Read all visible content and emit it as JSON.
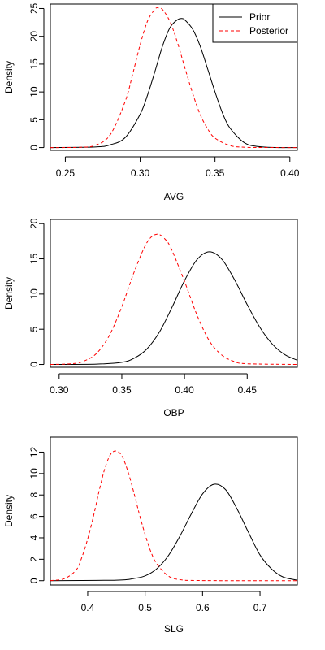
{
  "chart_data": [
    {
      "type": "line",
      "xlabel": "AVG",
      "ylabel": "Density",
      "xlim": [
        0.24,
        0.405
      ],
      "ylim": [
        -0.5,
        25.8
      ],
      "xticks": [
        0.25,
        0.3,
        0.35,
        0.4
      ],
      "xtick_labels": [
        "0.25",
        "0.30",
        "0.35",
        "0.40"
      ],
      "yticks": [
        0,
        5,
        10,
        15,
        20,
        25
      ],
      "ytick_labels": [
        "0",
        "5",
        "10",
        "15",
        "20",
        "25"
      ],
      "grid": false,
      "legend": {
        "placement": "top-right",
        "entries": [
          "Prior",
          "Posterior"
        ]
      },
      "series": [
        {
          "name": "Prior",
          "color": "#000000",
          "dash": "solid",
          "x": [
            0.24,
            0.27,
            0.28,
            0.29,
            0.3,
            0.305,
            0.31,
            0.315,
            0.32,
            0.325,
            0.328,
            0.33,
            0.335,
            0.34,
            0.345,
            0.35,
            0.355,
            0.36,
            0.37,
            0.38,
            0.39,
            0.405
          ],
          "y": [
            0,
            0.1,
            0.5,
            1.8,
            6.0,
            9.5,
            13.8,
            18.3,
            21.6,
            23.0,
            23.2,
            22.9,
            21.3,
            18.3,
            14.2,
            10.0,
            6.2,
            3.5,
            0.8,
            0.15,
            0.02,
            0
          ]
        },
        {
          "name": "Posterior",
          "color": "#ff0000",
          "dash": "dashed",
          "x": [
            0.24,
            0.26,
            0.27,
            0.28,
            0.29,
            0.295,
            0.3,
            0.305,
            0.31,
            0.312,
            0.315,
            0.32,
            0.325,
            0.33,
            0.335,
            0.34,
            0.345,
            0.35,
            0.36,
            0.37,
            0.38,
            0.405
          ],
          "y": [
            0,
            0.05,
            0.4,
            2.3,
            8.3,
            13.2,
            18.5,
            22.8,
            24.9,
            25.1,
            24.8,
            22.6,
            18.8,
            14.2,
            9.8,
            6.0,
            3.4,
            1.7,
            0.35,
            0.05,
            0.01,
            0
          ]
        }
      ]
    },
    {
      "type": "line",
      "xlabel": "OBP",
      "ylabel": "Density",
      "xlim": [
        0.293,
        0.49
      ],
      "ylim": [
        -0.4,
        20.6
      ],
      "xticks": [
        0.3,
        0.35,
        0.4,
        0.45
      ],
      "xtick_labels": [
        "0.30",
        "0.35",
        "0.40",
        "0.45"
      ],
      "yticks": [
        0,
        5,
        10,
        15,
        20
      ],
      "ytick_labels": [
        "0",
        "5",
        "10",
        "15",
        "20"
      ],
      "grid": false,
      "series": [
        {
          "name": "Prior",
          "color": "#000000",
          "dash": "solid",
          "x": [
            0.293,
            0.33,
            0.35,
            0.36,
            0.37,
            0.38,
            0.39,
            0.4,
            0.41,
            0.42,
            0.43,
            0.44,
            0.45,
            0.46,
            0.47,
            0.48,
            0.49
          ],
          "y": [
            0,
            0.05,
            0.3,
            0.9,
            2.2,
            4.6,
            8.1,
            11.9,
            14.9,
            16.0,
            14.9,
            12.0,
            8.5,
            5.3,
            2.9,
            1.4,
            0.6
          ]
        },
        {
          "name": "Posterior",
          "color": "#ff0000",
          "dash": "dashed",
          "x": [
            0.293,
            0.31,
            0.32,
            0.33,
            0.34,
            0.35,
            0.36,
            0.37,
            0.378,
            0.385,
            0.39,
            0.4,
            0.41,
            0.42,
            0.43,
            0.44,
            0.45,
            0.49
          ],
          "y": [
            0,
            0.1,
            0.5,
            1.6,
            4.1,
            8.2,
            13.2,
            17.3,
            18.5,
            17.7,
            16.2,
            11.8,
            7.0,
            3.3,
            1.3,
            0.4,
            0.1,
            0
          ]
        }
      ]
    },
    {
      "type": "line",
      "xlabel": "SLG",
      "ylabel": "Density",
      "xlim": [
        0.335,
        0.765
      ],
      "ylim": [
        -0.4,
        13.4
      ],
      "xticks": [
        0.4,
        0.5,
        0.6,
        0.7
      ],
      "xtick_labels": [
        "0.4",
        "0.5",
        "0.6",
        "0.7"
      ],
      "yticks": [
        0,
        2,
        4,
        6,
        8,
        10,
        12
      ],
      "ytick_labels": [
        "0",
        "2",
        "4",
        "6",
        "8",
        "10",
        "12"
      ],
      "grid": false,
      "series": [
        {
          "name": "Prior",
          "color": "#000000",
          "dash": "solid",
          "x": [
            0.335,
            0.45,
            0.48,
            0.5,
            0.52,
            0.54,
            0.56,
            0.58,
            0.6,
            0.62,
            0.64,
            0.66,
            0.68,
            0.7,
            0.72,
            0.74,
            0.765
          ],
          "y": [
            0,
            0.05,
            0.2,
            0.45,
            1.1,
            2.3,
            4.1,
            6.2,
            8.1,
            9.0,
            8.5,
            6.7,
            4.5,
            2.4,
            1.1,
            0.35,
            0.05
          ]
        },
        {
          "name": "Posterior",
          "color": "#ff0000",
          "dash": "dashed",
          "x": [
            0.335,
            0.36,
            0.38,
            0.39,
            0.4,
            0.41,
            0.42,
            0.43,
            0.44,
            0.45,
            0.46,
            0.47,
            0.48,
            0.49,
            0.5,
            0.51,
            0.52,
            0.54,
            0.56,
            0.6,
            0.765
          ],
          "y": [
            0,
            0.2,
            1.0,
            2.2,
            3.9,
            6.0,
            8.4,
            10.5,
            11.8,
            12.1,
            11.6,
            10.2,
            8.3,
            6.2,
            4.3,
            2.7,
            1.6,
            0.45,
            0.1,
            0.01,
            0
          ]
        }
      ]
    }
  ]
}
